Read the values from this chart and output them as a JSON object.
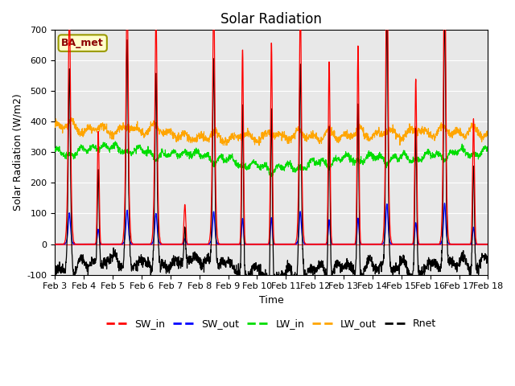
{
  "title": "Solar Radiation",
  "xlabel": "Time",
  "ylabel": "Solar Radiation (W/m2)",
  "ylim": [
    -100,
    700
  ],
  "yticks": [
    -100,
    0,
    100,
    200,
    300,
    400,
    500,
    600,
    700
  ],
  "date_labels": [
    "Feb 3",
    "Feb 4",
    "Feb 5",
    "Feb 6",
    "Feb 7",
    "Feb 8",
    "Feb 9",
    "Feb 10",
    "Feb 11",
    "Feb 12",
    "Feb 13",
    "Feb 14",
    "Feb 15",
    "Feb 16",
    "Feb 17",
    "Feb 18"
  ],
  "colors": {
    "SW_in": "#ff0000",
    "SW_out": "#0000ff",
    "LW_in": "#00dd00",
    "LW_out": "#ffa500",
    "Rnet": "#000000"
  },
  "annotation_box": "BA_met",
  "plot_bg": "#e8e8e8"
}
